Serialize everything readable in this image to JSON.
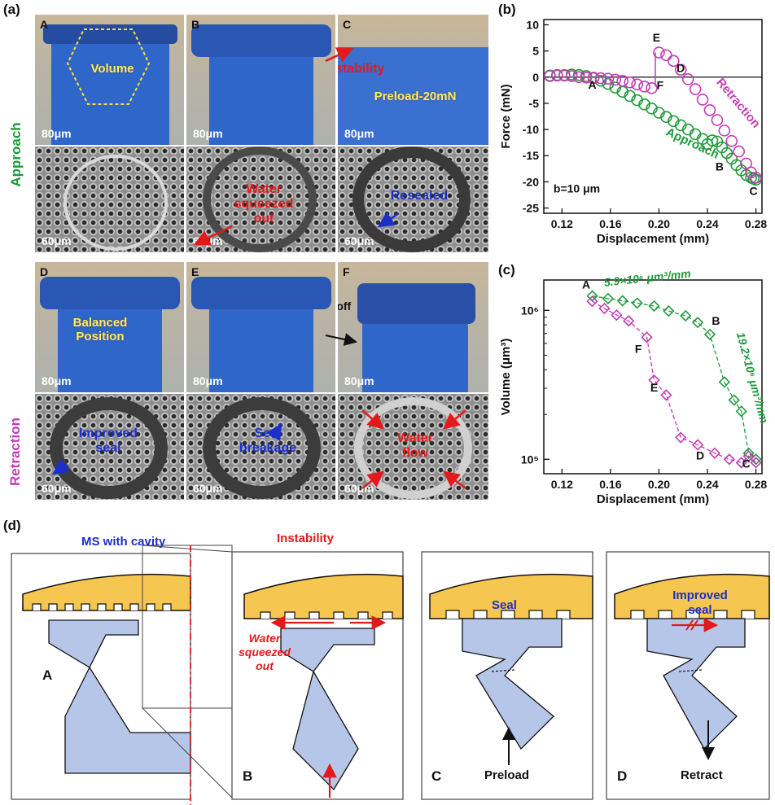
{
  "figure": {
    "panel_a": {
      "label": "(a)",
      "row_approach": "Approach",
      "row_retraction": "Retraction",
      "cells": [
        {
          "letter": "A",
          "top_scale": "80μm",
          "bottom_scale": "60μm",
          "top_text": "Volume",
          "bottom_text": ""
        },
        {
          "letter": "B",
          "top_scale": "80μm",
          "bottom_scale": "60μm",
          "top_text": "",
          "bottom_text": "Water squeezed out"
        },
        {
          "letter": "C",
          "top_scale": "80μm",
          "bottom_scale": "60μm",
          "top_text_red": "Instability",
          "top_text": "Preload-20mN",
          "bottom_text": "Resealed"
        },
        {
          "letter": "D",
          "top_scale": "80μm",
          "bottom_scale": "60μm",
          "top_text": "Balanced Position",
          "bottom_text": "Improved seal"
        },
        {
          "letter": "E",
          "top_scale": "80μm",
          "bottom_scale": "60μm",
          "top_text": "",
          "bottom_text": "Seal breakage"
        },
        {
          "letter": "F",
          "top_scale": "80μm",
          "bottom_scale": "60μm",
          "top_text": "Pull-off",
          "bottom_text": "Water flow"
        }
      ]
    },
    "panel_b": {
      "label": "(b)",
      "annotation": "b=10 μm",
      "approach": "Approach",
      "retraction": "Retraction"
    },
    "panel_c": {
      "label": "(c)",
      "slope1": "5.9×10⁶ μm³/mm",
      "slope2": "19.2×10⁶ μm³/mm"
    },
    "panel_d": {
      "label": "(d)",
      "ms_label": "MS with cavity",
      "instability": "Instability",
      "water": "Water squeezed out",
      "seal": "Seal",
      "improved_seal": "Improved seal",
      "preload": "Preload",
      "retract": "Retract",
      "letters": [
        "A",
        "B",
        "C",
        "D"
      ]
    },
    "colors": {
      "green": "#1f9a3a",
      "magenta": "#c33bb5",
      "red": "#e31a1c",
      "blue": "#1c2fc8",
      "yellow": "#f5c650",
      "lightblue": "#b6c6e8"
    }
  },
  "chart_data": [
    {
      "type": "scatter",
      "panel": "b",
      "xlabel": "Displacement (mm)",
      "ylabel": "Force (mN)",
      "xlim": [
        0.105,
        0.285
      ],
      "ylim": [
        -26,
        11
      ],
      "xticks": [
        0.12,
        0.16,
        0.2,
        0.24,
        0.28
      ],
      "yticks": [
        -25,
        -20,
        -15,
        -10,
        -5,
        0,
        5,
        10
      ],
      "xtick_labels": [
        "0.12",
        "0.16",
        "0.20",
        "0.24",
        "0.28"
      ],
      "ytick_labels": [
        "-25",
        "-20",
        "-15",
        "-10",
        "-5",
        "0",
        "5",
        "10"
      ],
      "point_labels": [
        {
          "text": "A",
          "x": 0.145,
          "y": -2.2
        },
        {
          "text": "B",
          "x": 0.25,
          "y": -17.8
        },
        {
          "text": "C",
          "x": 0.278,
          "y": -22.5
        },
        {
          "text": "D",
          "x": 0.218,
          "y": 1.0
        },
        {
          "text": "E",
          "x": 0.198,
          "y": 6.8
        },
        {
          "text": "F",
          "x": 0.201,
          "y": -2.3
        }
      ],
      "series": [
        {
          "name": "Approach",
          "color": "#1f9a3a",
          "x": [
            0.11,
            0.116,
            0.122,
            0.128,
            0.134,
            0.14,
            0.146,
            0.152,
            0.158,
            0.164,
            0.17,
            0.176,
            0.182,
            0.188,
            0.194,
            0.2,
            0.206,
            0.212,
            0.218,
            0.224,
            0.23,
            0.236,
            0.24,
            0.244,
            0.248,
            0.252,
            0.256,
            0.26,
            0.264,
            0.268,
            0.272,
            0.276,
            0.278,
            0.28
          ],
          "y": [
            0.3,
            0.4,
            0.4,
            0.5,
            0.4,
            0.2,
            -0.2,
            -0.7,
            -1.3,
            -2.0,
            -2.8,
            -3.6,
            -4.4,
            -5.2,
            -6.0,
            -6.8,
            -7.6,
            -8.4,
            -9.2,
            -10.0,
            -10.9,
            -11.8,
            -12.8,
            -12.1,
            -12.3,
            -13.4,
            -14.5,
            -15.6,
            -16.8,
            -17.8,
            -18.7,
            -19.2,
            -19.4,
            -19.6
          ]
        },
        {
          "name": "Retraction",
          "color": "#c33bb5",
          "x": [
            0.11,
            0.116,
            0.122,
            0.128,
            0.134,
            0.14,
            0.146,
            0.152,
            0.158,
            0.164,
            0.17,
            0.176,
            0.182,
            0.188,
            0.194,
            0.2,
            0.206,
            0.212,
            0.218,
            0.224,
            0.23,
            0.236,
            0.242,
            0.248,
            0.254,
            0.26,
            0.266,
            0.272,
            0.276,
            0.28
          ],
          "y": [
            0.2,
            0.3,
            0.3,
            0.2,
            0.0,
            -0.1,
            -0.1,
            -0.2,
            -0.3,
            -0.5,
            -0.7,
            -1.0,
            -1.4,
            -1.8,
            -2.1,
            4.7,
            4.2,
            3.1,
            1.4,
            -0.4,
            -2.3,
            -4.3,
            -6.3,
            -8.2,
            -10.2,
            -12.2,
            -14.2,
            -16.5,
            -18.2,
            -19.2
          ]
        }
      ]
    },
    {
      "type": "scatter",
      "panel": "c",
      "xlabel": "Displacement (mm)",
      "ylabel": "Volume (μm³)",
      "xlim": [
        0.105,
        0.285
      ],
      "ylim": [
        80000,
        1600000
      ],
      "log_y": true,
      "xticks": [
        0.12,
        0.16,
        0.2,
        0.24,
        0.28
      ],
      "xtick_labels": [
        "0.12",
        "0.16",
        "0.20",
        "0.24",
        "0.28"
      ],
      "ytick_labels": [
        "10⁵",
        "10⁶"
      ],
      "point_labels": [
        {
          "text": "A",
          "x": 0.14,
          "y": 1400000
        },
        {
          "text": "B",
          "x": 0.247,
          "y": 800000
        },
        {
          "text": "C",
          "x": 0.272,
          "y": 88000
        },
        {
          "text": "D",
          "x": 0.234,
          "y": 100000
        },
        {
          "text": "E",
          "x": 0.196,
          "y": 285000
        },
        {
          "text": "F",
          "x": 0.183,
          "y": 520000
        }
      ],
      "series": [
        {
          "name": "Approach",
          "color": "#1f9a3a",
          "x": [
            0.145,
            0.158,
            0.17,
            0.182,
            0.196,
            0.208,
            0.222,
            0.232,
            0.242,
            0.254,
            0.262,
            0.268,
            0.274,
            0.28
          ],
          "y": [
            1250000,
            1200000,
            1160000,
            1120000,
            1070000,
            990000,
            920000,
            830000,
            690000,
            330000,
            250000,
            210000,
            110000,
            100000
          ]
        },
        {
          "name": "Retraction",
          "color": "#c33bb5",
          "x": [
            0.145,
            0.155,
            0.165,
            0.175,
            0.19,
            0.196,
            0.206,
            0.218,
            0.232,
            0.246,
            0.258,
            0.268,
            0.274,
            0.28
          ],
          "y": [
            1150000,
            1030000,
            930000,
            850000,
            660000,
            340000,
            270000,
            140000,
            125000,
            110000,
            100000,
            95000,
            105000,
            95000
          ]
        }
      ]
    }
  ]
}
